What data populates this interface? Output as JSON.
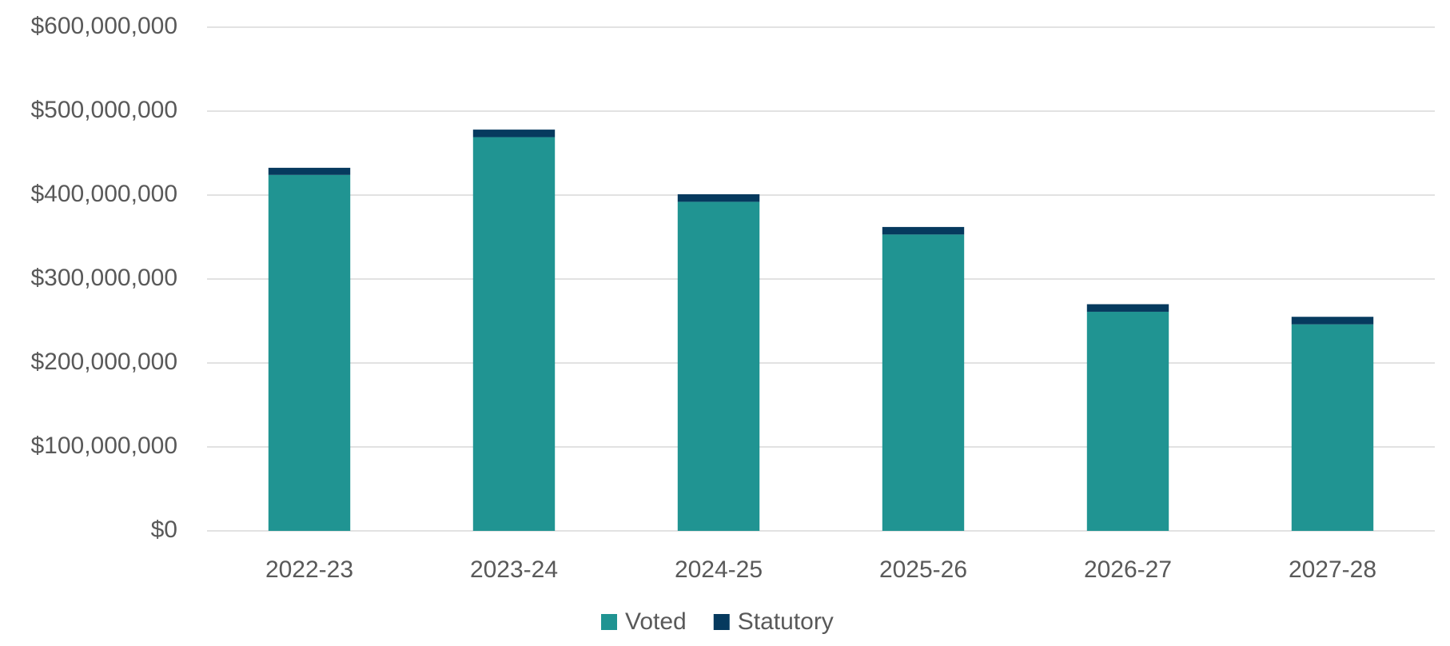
{
  "chart_data": {
    "type": "stacked_bar",
    "categories": [
      "2022-23",
      "2023-24",
      "2024-25",
      "2025-26",
      "2026-27",
      "2027-28"
    ],
    "series": [
      {
        "name": "Voted",
        "color": "#209492",
        "values": [
          424000000,
          469000000,
          392000000,
          353000000,
          261000000,
          246000000
        ]
      },
      {
        "name": "Statutory",
        "color": "#063a5e",
        "values": [
          8500000,
          9000000,
          9000000,
          9000000,
          9000000,
          9000000
        ]
      }
    ],
    "ylim": [
      0,
      600000000
    ],
    "yticks": [
      {
        "value": 0,
        "label": "$0"
      },
      {
        "value": 100000000,
        "label": "$100,000,000"
      },
      {
        "value": 200000000,
        "label": "$200,000,000"
      },
      {
        "value": 300000000,
        "label": "$300,000,000"
      },
      {
        "value": 400000000,
        "label": "$400,000,000"
      },
      {
        "value": 500000000,
        "label": "$500,000,000"
      },
      {
        "value": 600000000,
        "label": "$600,000,000"
      }
    ],
    "grid": true,
    "legend": "bottom"
  }
}
